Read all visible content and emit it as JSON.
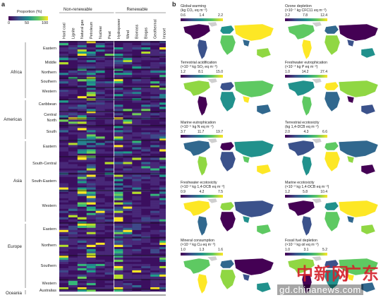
{
  "panel_a": {
    "letter": "a",
    "colorbar": {
      "title": "Proportion (%)",
      "ticks": [
        "0",
        "50",
        "100"
      ]
    },
    "group_headers": [
      "Non-renewable",
      "Renewable"
    ],
    "columns": [
      "Hard coal",
      "Lignite",
      "Natural gas",
      "Petroleum",
      "Nuclear",
      "Peat",
      "Hydropower",
      "Wind",
      "Biomass",
      "Biogas",
      "Geothermal",
      "Import"
    ],
    "continents": [
      "Africa",
      "Americas",
      "Asia",
      "Europe",
      "Oceania"
    ],
    "regions": [
      "Eastern",
      "Middle",
      "Northern",
      "Southern",
      "Western",
      "Caribbean",
      "Central",
      "North",
      "South",
      "Eastern",
      "South-Central",
      "South-Eastern",
      "Western",
      "Eastern",
      "Northern",
      "Southern",
      "Western",
      "Australias"
    ]
  },
  "panel_b": {
    "letter": "b",
    "maps": [
      {
        "title": "Global warming",
        "unit": "(kg CO₂ eq m⁻²)",
        "ticks": [
          "0.6",
          "1.4",
          "2.2"
        ]
      },
      {
        "title": "Ozone depletion",
        "unit": "(×10⁻⁷ kg CFC11 eq m⁻²)",
        "ticks": [
          "3.2",
          "7.8",
          "12.4"
        ]
      },
      {
        "title": "Terrestrial acidification",
        "unit": "(×10⁻³ kg SO₂ eq m⁻²)",
        "ticks": [
          "1.2",
          "8.1",
          "15.0"
        ]
      },
      {
        "title": "Freshwater eutrophication",
        "unit": "(×10⁻⁴ kg P eq m⁻²)",
        "ticks": [
          "1.0",
          "14.2",
          "27.4"
        ]
      },
      {
        "title": "Marine eutrophication",
        "unit": "(×10⁻⁵ kg N eq m⁻²)",
        "ticks": [
          "3.7",
          "11.7",
          "19.7"
        ]
      },
      {
        "title": "Terrestrial ecotoxicity",
        "unit": "(kg 1,4-DCB eq m⁻²)",
        "ticks": [
          "2.0",
          "4.3",
          "6.6"
        ]
      },
      {
        "title": "Freshwater ecotoxicity",
        "unit": "(×10⁻² kg 1,4-DCB eq m⁻²)",
        "ticks": [
          "0.9",
          "4.2",
          "7.5"
        ]
      },
      {
        "title": "Marine ecotoxicity",
        "unit": "(×10⁻² kg 1,4-DCB eq m⁻²)",
        "ticks": [
          "1.2",
          "5.8",
          "10.4"
        ]
      },
      {
        "title": "Mineral consumption",
        "unit": "(×10⁻² kg Cu eq m⁻²)",
        "ticks": [
          "1.0",
          "1.3",
          "1.6"
        ]
      },
      {
        "title": "Fossil fuel depletion",
        "unit": "(×10⁻¹ kg oil eq m⁻²)",
        "ticks": [
          "1.0",
          "3.1",
          "5.2"
        ]
      }
    ]
  },
  "watermark": {
    "brand_left": "中新网",
    "brand_right": "广东",
    "url": "gd.chinanews.com"
  }
}
